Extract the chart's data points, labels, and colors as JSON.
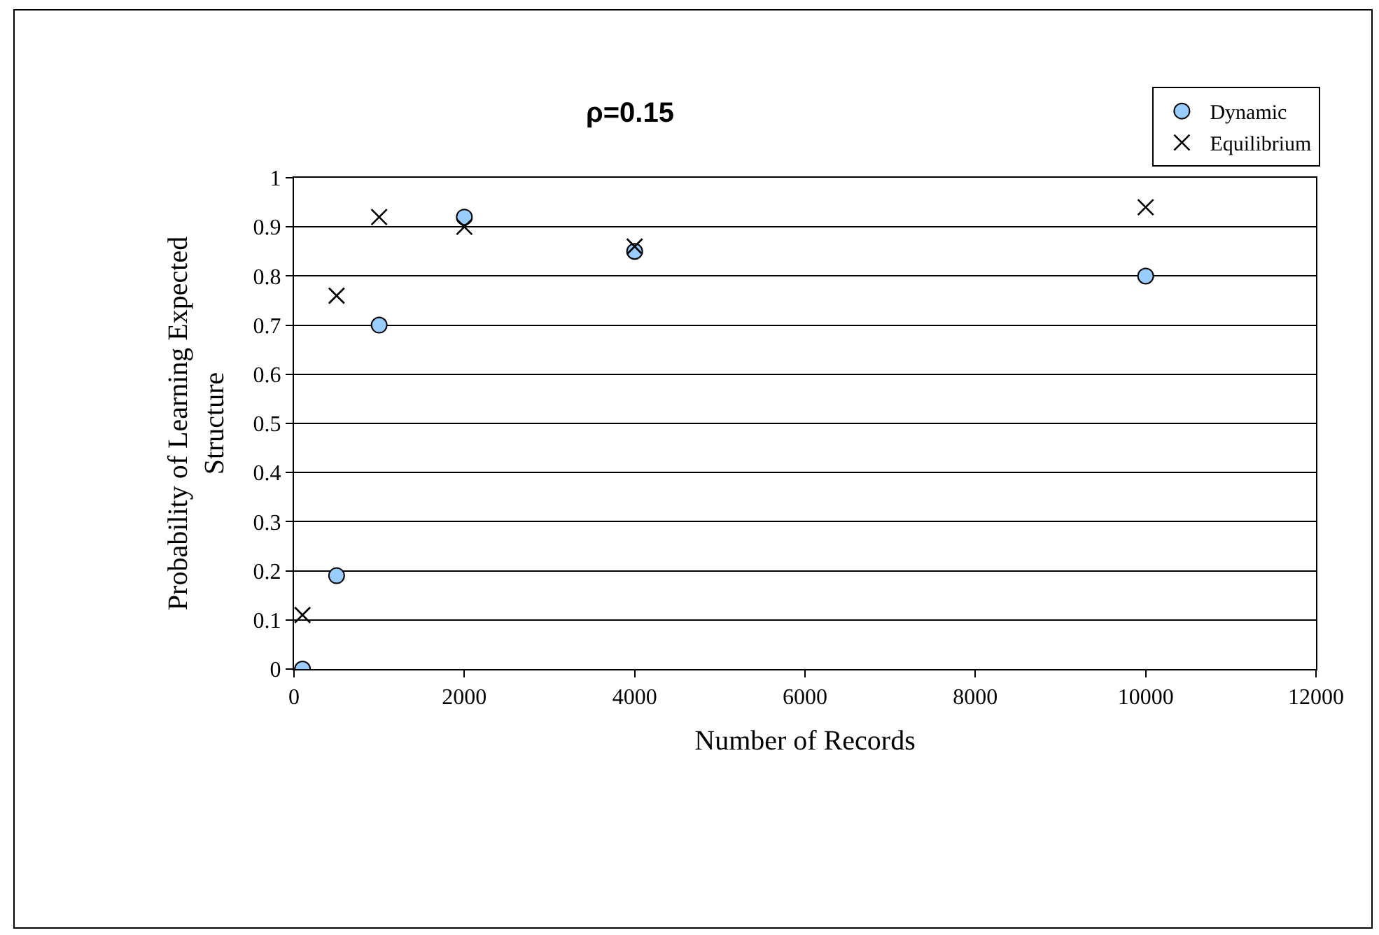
{
  "chart_data": {
    "type": "scatter",
    "title": "ρ=0.15",
    "xlabel": "Number of Records",
    "ylabel": "Probability of Learning Expected\nStructure",
    "xlim": [
      0,
      12000
    ],
    "xticks": [
      0,
      2000,
      4000,
      6000,
      8000,
      10000,
      12000
    ],
    "ylim": [
      0,
      1
    ],
    "yticks": [
      0,
      0.1,
      0.2,
      0.3,
      0.4,
      0.5,
      0.6,
      0.7,
      0.8,
      0.9,
      1
    ],
    "grid": "y",
    "legend": "top right",
    "series": [
      {
        "name": "Dynamic",
        "color": "#99ccff",
        "marker": "circle",
        "x": [
          100,
          500,
          1000,
          2000,
          4000,
          10000
        ],
        "values": [
          0,
          0.19,
          0.7,
          0.92,
          0.85,
          0.8
        ]
      },
      {
        "name": "Equilibrium",
        "color": "#000000",
        "marker": "cross",
        "x": [
          100,
          500,
          1000,
          2000,
          4000,
          10000
        ],
        "values": [
          0.11,
          0.76,
          0.92,
          0.9,
          0.86,
          0.94
        ]
      }
    ]
  }
}
